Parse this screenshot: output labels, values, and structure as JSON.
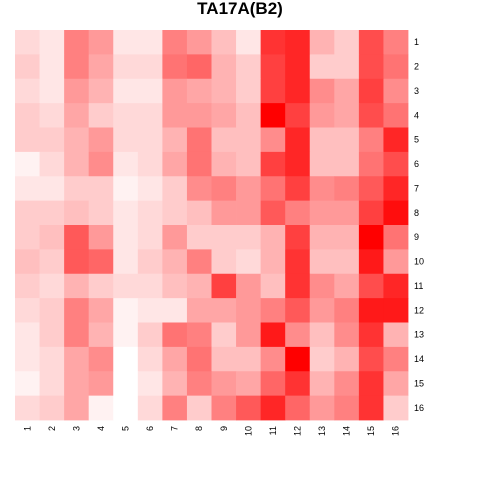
{
  "chart_data": {
    "type": "heatmap",
    "title": "TA17A(B2)",
    "xlabel": "",
    "ylabel": "",
    "x_categories": [
      "1",
      "2",
      "3",
      "4",
      "5",
      "6",
      "7",
      "8",
      "9",
      "10",
      "11",
      "12",
      "13",
      "14",
      "15",
      "16"
    ],
    "y_categories": [
      "1",
      "2",
      "3",
      "4",
      "5",
      "6",
      "7",
      "8",
      "9",
      "10",
      "11",
      "12",
      "13",
      "14",
      "15",
      "16"
    ],
    "value_range": [
      0,
      1
    ],
    "color_low": "#ffffff",
    "color_high": "#ff0000",
    "grid": false,
    "legend": "none",
    "values": [
      [
        0.15,
        0.1,
        0.5,
        0.4,
        0.1,
        0.1,
        0.5,
        0.4,
        0.25,
        0.1,
        0.8,
        0.85,
        0.3,
        0.2,
        0.7,
        0.5
      ],
      [
        0.2,
        0.1,
        0.5,
        0.35,
        0.15,
        0.15,
        0.55,
        0.6,
        0.3,
        0.2,
        0.75,
        0.85,
        0.2,
        0.2,
        0.7,
        0.55
      ],
      [
        0.15,
        0.1,
        0.4,
        0.3,
        0.1,
        0.1,
        0.4,
        0.35,
        0.3,
        0.2,
        0.75,
        0.85,
        0.45,
        0.35,
        0.75,
        0.45
      ],
      [
        0.2,
        0.15,
        0.35,
        0.2,
        0.15,
        0.15,
        0.4,
        0.4,
        0.35,
        0.25,
        1.0,
        0.75,
        0.4,
        0.35,
        0.7,
        0.55
      ],
      [
        0.2,
        0.2,
        0.3,
        0.4,
        0.15,
        0.15,
        0.3,
        0.55,
        0.25,
        0.25,
        0.45,
        0.85,
        0.25,
        0.25,
        0.5,
        0.85
      ],
      [
        0.05,
        0.15,
        0.3,
        0.45,
        0.1,
        0.15,
        0.35,
        0.55,
        0.3,
        0.25,
        0.75,
        0.85,
        0.25,
        0.25,
        0.55,
        0.7
      ],
      [
        0.1,
        0.1,
        0.2,
        0.2,
        0.05,
        0.1,
        0.2,
        0.45,
        0.5,
        0.4,
        0.55,
        0.75,
        0.45,
        0.5,
        0.65,
        0.85
      ],
      [
        0.2,
        0.2,
        0.25,
        0.2,
        0.1,
        0.15,
        0.2,
        0.25,
        0.4,
        0.4,
        0.65,
        0.5,
        0.4,
        0.4,
        0.75,
        0.95
      ],
      [
        0.2,
        0.25,
        0.65,
        0.4,
        0.1,
        0.15,
        0.4,
        0.2,
        0.2,
        0.2,
        0.3,
        0.75,
        0.3,
        0.3,
        1.0,
        0.55
      ],
      [
        0.25,
        0.2,
        0.65,
        0.6,
        0.1,
        0.2,
        0.3,
        0.5,
        0.2,
        0.15,
        0.3,
        0.8,
        0.25,
        0.25,
        0.9,
        0.4
      ],
      [
        0.2,
        0.15,
        0.3,
        0.2,
        0.15,
        0.15,
        0.25,
        0.3,
        0.75,
        0.4,
        0.25,
        0.8,
        0.45,
        0.35,
        0.7,
        0.85
      ],
      [
        0.15,
        0.2,
        0.5,
        0.35,
        0.05,
        0.1,
        0.1,
        0.35,
        0.35,
        0.4,
        0.5,
        0.65,
        0.4,
        0.5,
        0.9,
        0.9
      ],
      [
        0.1,
        0.2,
        0.5,
        0.3,
        0.05,
        0.2,
        0.55,
        0.5,
        0.2,
        0.4,
        0.9,
        0.45,
        0.25,
        0.45,
        0.8,
        0.3
      ],
      [
        0.1,
        0.15,
        0.35,
        0.45,
        0.0,
        0.15,
        0.35,
        0.55,
        0.25,
        0.25,
        0.45,
        1.0,
        0.2,
        0.3,
        0.7,
        0.5
      ],
      [
        0.05,
        0.15,
        0.35,
        0.4,
        0.0,
        0.1,
        0.3,
        0.5,
        0.4,
        0.35,
        0.6,
        0.8,
        0.3,
        0.45,
        0.8,
        0.35
      ],
      [
        0.15,
        0.2,
        0.35,
        0.05,
        0.0,
        0.15,
        0.5,
        0.2,
        0.5,
        0.65,
        0.85,
        0.6,
        0.4,
        0.5,
        0.8,
        0.2
      ]
    ]
  }
}
